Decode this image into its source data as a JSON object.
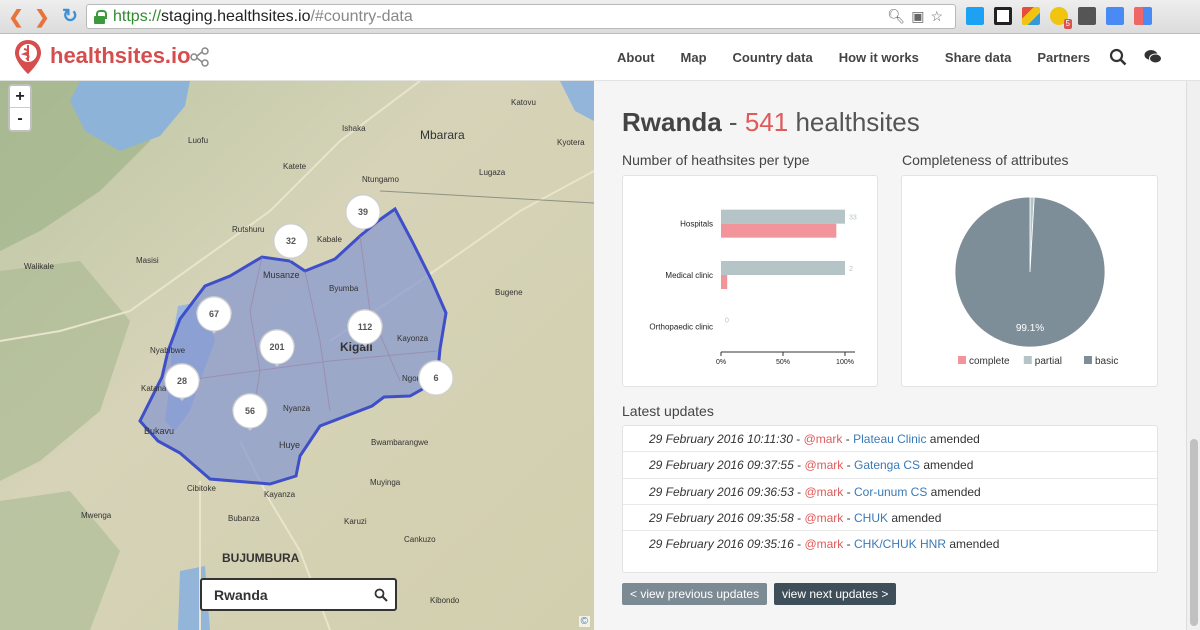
{
  "browser": {
    "url_scheme": "https://",
    "url_host": "staging.healthsites.io",
    "url_path": "/#country-data"
  },
  "header": {
    "logo": "healthsites.io",
    "menu": [
      "About",
      "Map",
      "Country data",
      "How it works",
      "Share data",
      "Partners"
    ]
  },
  "map": {
    "zoom_in": "+",
    "zoom_out": "-",
    "search_value": "Rwanda",
    "attribution": "©",
    "place_labels": [
      "Katovu",
      "Ishaka",
      "Mbarara",
      "Luofu",
      "Kyotera",
      "Katete",
      "Lugaza",
      "Ntungamo",
      "Rutshuru",
      "Kabale",
      "Masisi",
      "Walikale",
      "Musanze",
      "Byumba",
      "Bugene",
      "Nyabibwe",
      "Kayonza",
      "Kigali",
      "Ngoma",
      "Katana",
      "Nyanza",
      "Bukavu",
      "Huye",
      "Bwambarangwe",
      "Cibitoke",
      "Muyinga",
      "Kayanza",
      "Mwenga",
      "Bubanza",
      "Karuzi",
      "Cankuzo",
      "BUJUMBURA",
      "Kibondo"
    ],
    "clusters": [
      {
        "label": "39"
      },
      {
        "label": "32"
      },
      {
        "label": "67"
      },
      {
        "label": "112"
      },
      {
        "label": "201"
      },
      {
        "label": "28"
      },
      {
        "label": "6"
      },
      {
        "label": "56"
      }
    ]
  },
  "panel": {
    "country": "Rwanda",
    "separator": "-",
    "count": "541",
    "count_suffix": "healthsites",
    "types_title": "Number of heathsites per type",
    "completeness_title": "Completeness of attributes",
    "updates_title": "Latest updates",
    "prev_label": "< view previous updates",
    "next_label": "view next updates >",
    "updates": [
      {
        "date": "29 February 2016 10:11:30",
        "sep1": " - ",
        "user": "@mark",
        "sep2": " - ",
        "site": "Plateau Clinic",
        "action": " amended"
      },
      {
        "date": "29 February 2016 09:37:55",
        "sep1": " - ",
        "user": "@mark",
        "sep2": " - ",
        "site": "Gatenga CS",
        "action": " amended"
      },
      {
        "date": "29 February 2016 09:36:53",
        "sep1": " - ",
        "user": "@mark",
        "sep2": " - ",
        "site": "Cor-unum CS",
        "action": " amended"
      },
      {
        "date": "29 February 2016 09:35:58",
        "sep1": " - ",
        "user": "@mark",
        "sep2": " - ",
        "site": "CHUK",
        "action": " amended"
      },
      {
        "date": "29 February 2016 09:35:16",
        "sep1": " - ",
        "user": "@mark",
        "sep2": " - ",
        "site": "CHK/CHUK HNR",
        "action": " amended"
      }
    ]
  },
  "chart_data": [
    {
      "type": "bar",
      "orientation": "horizontal",
      "categories": [
        "Hospitals",
        "Medical clinic",
        "Orthopaedic clinic"
      ],
      "value_labels": [
        "33",
        "2",
        "0"
      ],
      "series": [
        {
          "values": [
            100,
            100,
            0
          ],
          "color": "#b5c4c6"
        },
        {
          "values": [
            93,
            5,
            0
          ],
          "color": "#f1959b"
        }
      ],
      "xlim": [
        0,
        100
      ],
      "tick_labels": [
        "0%",
        "50%",
        "100%"
      ]
    },
    {
      "type": "pie",
      "slices": [
        {
          "name": "complete",
          "value": 0.0,
          "color": "#f1959b"
        },
        {
          "name": "partial",
          "value": 0.9,
          "color": "#b5c4c6"
        },
        {
          "name": "basic",
          "value": 99.1,
          "color": "#7e8e99"
        }
      ],
      "data_label": "99.1%",
      "legend": "bottom"
    }
  ],
  "colors": {
    "accent": "#e05a5a",
    "link": "#3a7ab7"
  }
}
